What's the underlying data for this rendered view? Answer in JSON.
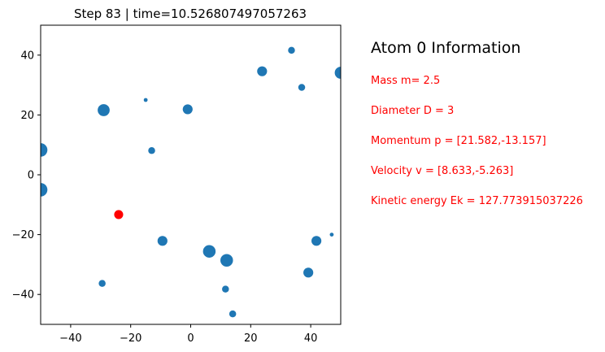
{
  "title": "Step 83  |  time=10.526807497057263",
  "info": {
    "heading": "Atom 0 Information",
    "lines": [
      "Mass m= 2.5",
      "Diameter D = 3",
      "Momentum  p = [21.582,-13.157]",
      "Velocity  v = [8.633,-5.263]",
      "Kinetic energy Ek = 127.773915037226"
    ]
  },
  "chart_data": {
    "type": "scatter",
    "title": "Step 83  |  time=10.526807497057263",
    "xlim": [
      -50,
      50
    ],
    "ylim": [
      -50,
      50
    ],
    "xticks": [
      -40,
      -20,
      0,
      20,
      40
    ],
    "yticks": [
      -40,
      -20,
      0,
      20,
      40
    ],
    "grid": false,
    "colors": {
      "atoms": "#1f77b4",
      "highlight": "#ff0000"
    },
    "atoms": [
      {
        "x": -24,
        "y": -13.3,
        "d": 3,
        "highlight": true
      },
      {
        "x": -50,
        "y": 8.3,
        "d": 4.5
      },
      {
        "x": -50,
        "y": -5,
        "d": 4.5
      },
      {
        "x": -29,
        "y": 21.6,
        "d": 4
      },
      {
        "x": -15,
        "y": 25,
        "d": 1.3
      },
      {
        "x": -13,
        "y": 8.1,
        "d": 2.3
      },
      {
        "x": -1,
        "y": 21.9,
        "d": 3.3
      },
      {
        "x": 23.8,
        "y": 34.6,
        "d": 3.3
      },
      {
        "x": 33.6,
        "y": 41.6,
        "d": 2.3
      },
      {
        "x": 37,
        "y": 29.2,
        "d": 2.3
      },
      {
        "x": 50,
        "y": 34.1,
        "d": 4
      },
      {
        "x": -9.4,
        "y": -22.1,
        "d": 3.3
      },
      {
        "x": 6.2,
        "y": -25.6,
        "d": 4.2
      },
      {
        "x": 12,
        "y": -28.6,
        "d": 4.2
      },
      {
        "x": 41.9,
        "y": -22.1,
        "d": 3.3
      },
      {
        "x": 47,
        "y": -20,
        "d": 1.3
      },
      {
        "x": 39.2,
        "y": -32.7,
        "d": 3.3
      },
      {
        "x": -29.5,
        "y": -36.3,
        "d": 2.3
      },
      {
        "x": 11.6,
        "y": -38.2,
        "d": 2.3
      },
      {
        "x": 14,
        "y": -46.5,
        "d": 2.3
      }
    ]
  }
}
